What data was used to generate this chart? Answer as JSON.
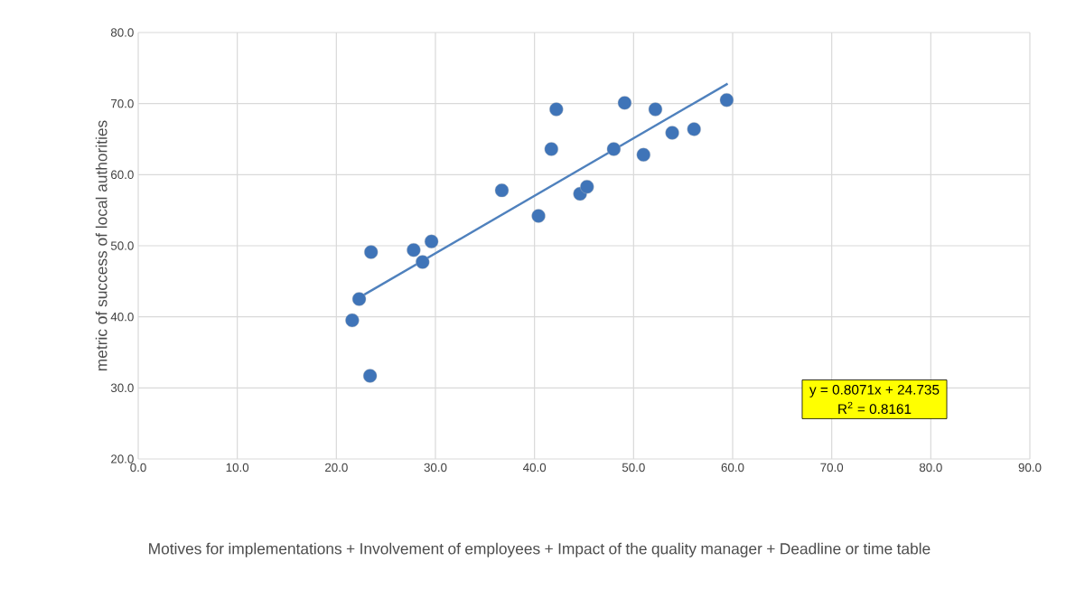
{
  "chart_data": {
    "type": "scatter",
    "xlabel": "Motives for implementations + Involvement of employees + Impact of the quality manager + Deadline or time table",
    "ylabel": "metric of success of local authorities",
    "xlim": [
      0,
      90
    ],
    "ylim": [
      20,
      80
    ],
    "xticks": [
      {
        "value": 0,
        "label": "0.0"
      },
      {
        "value": 10,
        "label": "10.0"
      },
      {
        "value": 20,
        "label": "20.0"
      },
      {
        "value": 30,
        "label": "30.0"
      },
      {
        "value": 40,
        "label": "40.0"
      },
      {
        "value": 50,
        "label": "50.0"
      },
      {
        "value": 60,
        "label": "60.0"
      },
      {
        "value": 70,
        "label": "70.0"
      },
      {
        "value": 80,
        "label": "80.0"
      },
      {
        "value": 90,
        "label": "90.0"
      }
    ],
    "yticks": [
      {
        "value": 20,
        "label": "20.0"
      },
      {
        "value": 30,
        "label": "30.0"
      },
      {
        "value": 40,
        "label": "40.0"
      },
      {
        "value": 50,
        "label": "50.0"
      },
      {
        "value": 60,
        "label": "60.0"
      },
      {
        "value": 70,
        "label": "70.0"
      },
      {
        "value": 80,
        "label": "80.0"
      }
    ],
    "grid": true,
    "series": [
      {
        "marker": "circle",
        "color": "#3f74b8",
        "x": [
          21.6,
          22.3,
          23.4,
          23.5,
          27.8,
          28.7,
          29.6,
          36.7,
          40.4,
          41.7,
          42.2,
          44.6,
          45.3,
          48.0,
          49.1,
          51.0,
          52.2,
          53.9,
          56.1,
          59.4
        ],
        "values": [
          39.5,
          42.5,
          31.7,
          49.1,
          49.4,
          47.7,
          50.6,
          57.8,
          54.2,
          63.6,
          69.2,
          57.3,
          58.3,
          63.6,
          70.1,
          62.8,
          69.2,
          65.9,
          66.4,
          70.5
        ]
      },
      {
        "type": "line",
        "marker": "none",
        "color": "#4f81bd",
        "x": [
          22.3,
          59.5
        ],
        "values": [
          42.7,
          72.8
        ]
      }
    ],
    "annotations": [
      "y = 0.8071x + 24.735",
      "R$^{2}$ = 0.8161"
    ]
  }
}
